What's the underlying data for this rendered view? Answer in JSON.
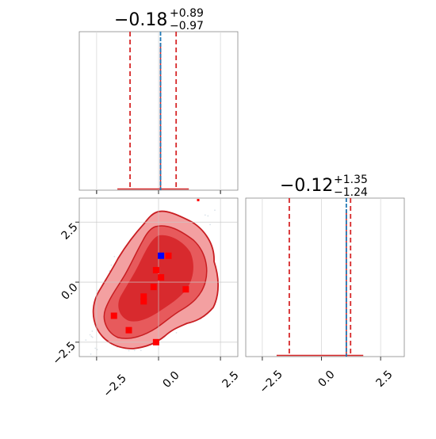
{
  "chart_data": [
    {
      "type": "histogram",
      "panel": "marginal-param-1",
      "title_main": "−0.18",
      "title_plus": "+0.89",
      "title_minus": "−0.97",
      "xlim": [
        -3.2,
        3.2
      ],
      "grid": true,
      "quantile_lines": [
        -1.15,
        0.71
      ],
      "truth_value": 0.08,
      "peak_value": 0.08,
      "colors": {
        "hist": "#d62728",
        "quantiles": "#d62728",
        "truth": "#1f77b4"
      }
    },
    {
      "type": "histogram",
      "panel": "marginal-param-2",
      "title_main": "−0.12",
      "title_plus": "+1.35",
      "title_minus": "−1.24",
      "xlim": [
        -3.2,
        3.5
      ],
      "grid": true,
      "quantile_lines": [
        -1.36,
        1.23
      ],
      "truth_value": 1.05,
      "peak_value": 1.05,
      "x_ticks": [
        "−2.5",
        "0.0",
        "2.5"
      ],
      "colors": {
        "hist": "#d62728",
        "quantiles": "#d62728",
        "truth": "#1f77b4"
      }
    },
    {
      "type": "contour",
      "panel": "joint-param-1-vs-param-2",
      "xlim": [
        -3.2,
        3.2
      ],
      "ylim": [
        -3.1,
        3.5
      ],
      "grid": true,
      "x_ticks": [
        "−2.5",
        "0.0",
        "2.5"
      ],
      "y_ticks": [
        "−2.5",
        "0.0",
        "2.5"
      ],
      "red_markers": [
        [
          -0.1,
          0.5
        ],
        [
          0.1,
          0.2
        ],
        [
          -0.2,
          -0.2
        ],
        [
          -0.6,
          -0.6
        ],
        [
          -0.6,
          -0.8
        ],
        [
          1.1,
          -0.3
        ],
        [
          -1.8,
          -1.4
        ],
        [
          -1.2,
          -2.0
        ],
        [
          -0.1,
          -2.5
        ],
        [
          0.4,
          1.1
        ],
        [
          1.6,
          3.5
        ]
      ],
      "blue_marker": [
        0.1,
        1.1
      ],
      "colors": {
        "outer": "#f3a0a1",
        "mid": "#e75a5c",
        "inner": "#d82a2e",
        "line": "#c81e22",
        "markers": "#ff0000",
        "blue": "#0000ff"
      }
    }
  ]
}
